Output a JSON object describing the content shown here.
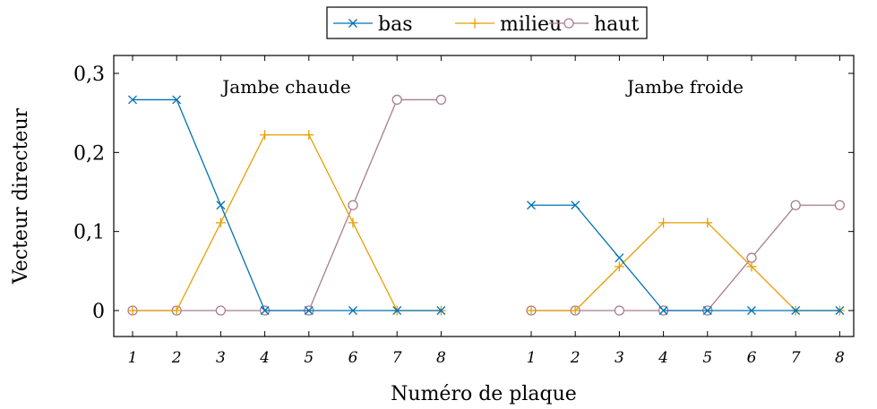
{
  "chart_data": {
    "type": "line",
    "xlabel": "Numéro de plaque",
    "ylabel": "Vecteur directeur",
    "ylim": [
      0,
      0.3
    ],
    "yticks": [
      {
        "value": 0,
        "label": "0"
      },
      {
        "value": 0.1,
        "label": "0,1"
      },
      {
        "value": 0.2,
        "label": "0,2"
      },
      {
        "value": 0.3,
        "label": "0,3"
      }
    ],
    "legend_position": "top-center",
    "grid": false,
    "groups": [
      {
        "label": "Jambe chaude",
        "x": [
          "1",
          "2",
          "3",
          "4",
          "5",
          "6",
          "7",
          "8"
        ],
        "series": [
          {
            "name": "bas",
            "marker": "x",
            "color": "#0072b2",
            "values": [
              0.2667,
              0.2667,
              0.1333,
              0,
              0,
              0,
              0,
              0
            ]
          },
          {
            "name": "milieu",
            "marker": "+",
            "color": "#e69f00",
            "values": [
              0,
              0,
              0.1111,
              0.2222,
              0.2222,
              0.1111,
              0,
              0
            ]
          },
          {
            "name": "haut",
            "marker": "o",
            "color": "#a97c91",
            "values": [
              0,
              0,
              0,
              0,
              0,
              0.1333,
              0.2667,
              0.2667
            ]
          }
        ]
      },
      {
        "label": "Jambe froide",
        "x": [
          "1",
          "2",
          "3",
          "4",
          "5",
          "6",
          "7",
          "8"
        ],
        "series": [
          {
            "name": "bas",
            "marker": "x",
            "color": "#0072b2",
            "values": [
              0.1333,
              0.1333,
              0.0667,
              0,
              0,
              0,
              0,
              0
            ]
          },
          {
            "name": "milieu",
            "marker": "+",
            "color": "#e69f00",
            "values": [
              0,
              0,
              0.0556,
              0.1111,
              0.1111,
              0.0556,
              0,
              0
            ]
          },
          {
            "name": "haut",
            "marker": "o",
            "color": "#a97c91",
            "values": [
              0,
              0,
              0,
              0,
              0,
              0.0667,
              0.1333,
              0.1333
            ]
          }
        ]
      }
    ]
  }
}
